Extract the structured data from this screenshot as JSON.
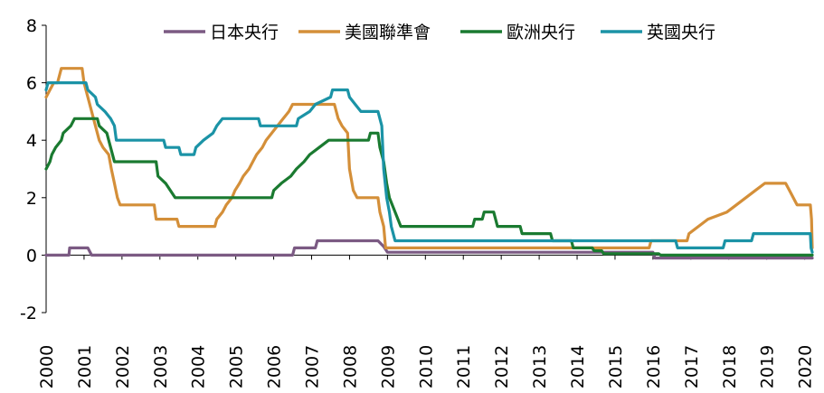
{
  "chart_data": {
    "type": "line",
    "title": "",
    "xlabel": "",
    "ylabel": "",
    "xlim": [
      2000,
      2020.2
    ],
    "ylim": [
      -2,
      8
    ],
    "y_ticks": [
      -2,
      0,
      2,
      4,
      6,
      8
    ],
    "x_ticks": [
      2000,
      2001,
      2002,
      2003,
      2004,
      2005,
      2006,
      2007,
      2008,
      2009,
      2010,
      2011,
      2012,
      2013,
      2014,
      2015,
      2016,
      2017,
      2018,
      2019,
      2020
    ],
    "x_tick_labels": [
      "2000",
      "2001",
      "2002",
      "2003",
      "2004",
      "2005",
      "2006",
      "2007",
      "2008",
      "2009",
      "2010",
      "2011",
      "2012",
      "2013",
      "2014",
      "2015",
      "2016",
      "2017",
      "2018",
      "2019",
      "2020"
    ],
    "y_tick_labels": [
      "-2",
      "0",
      "2",
      "4",
      "6",
      "8"
    ],
    "legend": {
      "position": "top"
    },
    "grid": false,
    "series": [
      {
        "name": "日本央行",
        "color": "#7b5a83",
        "points": [
          [
            2000.0,
            0.0
          ],
          [
            2000.6,
            0.0
          ],
          [
            2000.62,
            0.25
          ],
          [
            2001.1,
            0.25
          ],
          [
            2001.2,
            0.0
          ],
          [
            2006.5,
            0.0
          ],
          [
            2006.55,
            0.25
          ],
          [
            2007.1,
            0.25
          ],
          [
            2007.15,
            0.5
          ],
          [
            2008.75,
            0.5
          ],
          [
            2008.9,
            0.3
          ],
          [
            2009.0,
            0.1
          ],
          [
            2016.0,
            0.1
          ],
          [
            2016.05,
            -0.1
          ],
          [
            2020.2,
            -0.1
          ]
        ]
      },
      {
        "name": "美國聯準會",
        "color": "#d48f39",
        "points": [
          [
            2000.0,
            5.5
          ],
          [
            2000.1,
            5.75
          ],
          [
            2000.2,
            6.0
          ],
          [
            2000.3,
            6.0
          ],
          [
            2000.4,
            6.5
          ],
          [
            2000.95,
            6.5
          ],
          [
            2001.0,
            6.0
          ],
          [
            2001.1,
            5.5
          ],
          [
            2001.2,
            5.0
          ],
          [
            2001.3,
            4.5
          ],
          [
            2001.4,
            4.0
          ],
          [
            2001.5,
            3.75
          ],
          [
            2001.65,
            3.5
          ],
          [
            2001.72,
            3.0
          ],
          [
            2001.8,
            2.5
          ],
          [
            2001.88,
            2.0
          ],
          [
            2001.95,
            1.75
          ],
          [
            2002.85,
            1.75
          ],
          [
            2002.9,
            1.25
          ],
          [
            2003.45,
            1.25
          ],
          [
            2003.5,
            1.0
          ],
          [
            2004.45,
            1.0
          ],
          [
            2004.5,
            1.25
          ],
          [
            2004.65,
            1.5
          ],
          [
            2004.75,
            1.75
          ],
          [
            2004.9,
            2.0
          ],
          [
            2004.98,
            2.25
          ],
          [
            2005.1,
            2.5
          ],
          [
            2005.2,
            2.75
          ],
          [
            2005.35,
            3.0
          ],
          [
            2005.45,
            3.25
          ],
          [
            2005.55,
            3.5
          ],
          [
            2005.7,
            3.75
          ],
          [
            2005.8,
            4.0
          ],
          [
            2005.95,
            4.25
          ],
          [
            2006.1,
            4.5
          ],
          [
            2006.25,
            4.75
          ],
          [
            2006.4,
            5.0
          ],
          [
            2006.5,
            5.25
          ],
          [
            2007.6,
            5.25
          ],
          [
            2007.7,
            4.75
          ],
          [
            2007.8,
            4.5
          ],
          [
            2007.95,
            4.25
          ],
          [
            2008.0,
            3.0
          ],
          [
            2008.1,
            2.25
          ],
          [
            2008.2,
            2.0
          ],
          [
            2008.75,
            2.0
          ],
          [
            2008.8,
            1.5
          ],
          [
            2008.9,
            1.0
          ],
          [
            2008.95,
            0.25
          ],
          [
            2015.9,
            0.25
          ],
          [
            2015.95,
            0.5
          ],
          [
            2016.9,
            0.5
          ],
          [
            2016.95,
            0.75
          ],
          [
            2017.2,
            1.0
          ],
          [
            2017.45,
            1.25
          ],
          [
            2017.95,
            1.5
          ],
          [
            2018.2,
            1.75
          ],
          [
            2018.45,
            2.0
          ],
          [
            2018.7,
            2.25
          ],
          [
            2018.95,
            2.5
          ],
          [
            2019.5,
            2.5
          ],
          [
            2019.6,
            2.25
          ],
          [
            2019.7,
            2.0
          ],
          [
            2019.8,
            1.75
          ],
          [
            2020.15,
            1.75
          ],
          [
            2020.18,
            1.25
          ],
          [
            2020.2,
            0.25
          ]
        ]
      },
      {
        "name": "歐洲央行",
        "color": "#1a7a30",
        "points": [
          [
            2000.0,
            3.0
          ],
          [
            2000.1,
            3.25
          ],
          [
            2000.15,
            3.5
          ],
          [
            2000.25,
            3.75
          ],
          [
            2000.4,
            4.0
          ],
          [
            2000.45,
            4.25
          ],
          [
            2000.65,
            4.5
          ],
          [
            2000.75,
            4.75
          ],
          [
            2001.35,
            4.75
          ],
          [
            2001.4,
            4.5
          ],
          [
            2001.6,
            4.25
          ],
          [
            2001.7,
            3.75
          ],
          [
            2001.8,
            3.25
          ],
          [
            2002.9,
            3.25
          ],
          [
            2002.95,
            2.75
          ],
          [
            2003.15,
            2.5
          ],
          [
            2003.4,
            2.0
          ],
          [
            2005.95,
            2.0
          ],
          [
            2006.0,
            2.25
          ],
          [
            2006.2,
            2.5
          ],
          [
            2006.45,
            2.75
          ],
          [
            2006.6,
            3.0
          ],
          [
            2006.8,
            3.25
          ],
          [
            2006.95,
            3.5
          ],
          [
            2007.2,
            3.75
          ],
          [
            2007.45,
            4.0
          ],
          [
            2008.5,
            4.0
          ],
          [
            2008.55,
            4.25
          ],
          [
            2008.75,
            4.25
          ],
          [
            2008.8,
            3.75
          ],
          [
            2008.9,
            3.25
          ],
          [
            2008.98,
            2.5
          ],
          [
            2009.05,
            2.0
          ],
          [
            2009.2,
            1.5
          ],
          [
            2009.35,
            1.0
          ],
          [
            2011.25,
            1.0
          ],
          [
            2011.3,
            1.25
          ],
          [
            2011.5,
            1.25
          ],
          [
            2011.55,
            1.5
          ],
          [
            2011.8,
            1.5
          ],
          [
            2011.85,
            1.25
          ],
          [
            2011.9,
            1.0
          ],
          [
            2012.5,
            1.0
          ],
          [
            2012.55,
            0.75
          ],
          [
            2013.3,
            0.75
          ],
          [
            2013.35,
            0.5
          ],
          [
            2013.85,
            0.5
          ],
          [
            2013.9,
            0.25
          ],
          [
            2014.4,
            0.25
          ],
          [
            2014.45,
            0.15
          ],
          [
            2014.65,
            0.15
          ],
          [
            2014.7,
            0.05
          ],
          [
            2016.15,
            0.05
          ],
          [
            2016.2,
            0.0
          ],
          [
            2020.2,
            0.0
          ]
        ]
      },
      {
        "name": "英國央行",
        "color": "#1b93a6",
        "points": [
          [
            2000.0,
            5.75
          ],
          [
            2000.05,
            6.0
          ],
          [
            2001.05,
            6.0
          ],
          [
            2001.1,
            5.75
          ],
          [
            2001.3,
            5.5
          ],
          [
            2001.35,
            5.25
          ],
          [
            2001.55,
            5.0
          ],
          [
            2001.7,
            4.75
          ],
          [
            2001.8,
            4.5
          ],
          [
            2001.85,
            4.0
          ],
          [
            2003.1,
            4.0
          ],
          [
            2003.15,
            3.75
          ],
          [
            2003.5,
            3.75
          ],
          [
            2003.55,
            3.5
          ],
          [
            2003.9,
            3.5
          ],
          [
            2003.95,
            3.75
          ],
          [
            2004.15,
            4.0
          ],
          [
            2004.4,
            4.25
          ],
          [
            2004.5,
            4.5
          ],
          [
            2004.65,
            4.75
          ],
          [
            2005.6,
            4.75
          ],
          [
            2005.65,
            4.5
          ],
          [
            2006.6,
            4.5
          ],
          [
            2006.65,
            4.75
          ],
          [
            2006.95,
            5.0
          ],
          [
            2007.1,
            5.25
          ],
          [
            2007.5,
            5.5
          ],
          [
            2007.55,
            5.75
          ],
          [
            2007.95,
            5.75
          ],
          [
            2008.0,
            5.5
          ],
          [
            2008.15,
            5.25
          ],
          [
            2008.3,
            5.0
          ],
          [
            2008.75,
            5.0
          ],
          [
            2008.85,
            4.5
          ],
          [
            2008.9,
            3.0
          ],
          [
            2008.98,
            2.0
          ],
          [
            2009.05,
            1.5
          ],
          [
            2009.1,
            1.0
          ],
          [
            2009.2,
            0.5
          ],
          [
            2016.6,
            0.5
          ],
          [
            2016.65,
            0.25
          ],
          [
            2017.85,
            0.25
          ],
          [
            2017.9,
            0.5
          ],
          [
            2018.6,
            0.5
          ],
          [
            2018.65,
            0.75
          ],
          [
            2020.15,
            0.75
          ],
          [
            2020.17,
            0.25
          ],
          [
            2020.2,
            0.1
          ]
        ]
      }
    ]
  }
}
